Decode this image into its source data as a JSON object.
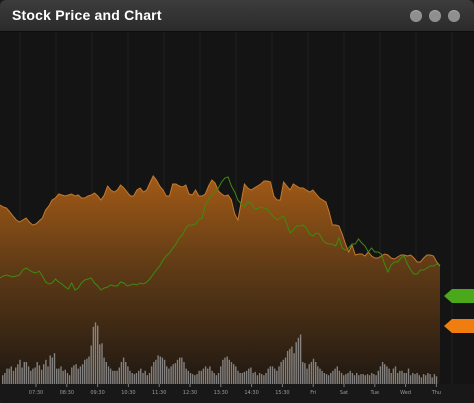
{
  "window": {
    "title": "Stock Price and Chart",
    "controls": [
      "minimize-icon",
      "maximize-icon",
      "close-icon"
    ]
  },
  "colors": {
    "background": "#141414",
    "price_area_top": "#a25a16",
    "price_line": "#c37a2f",
    "comparison_line": "#3c8c10",
    "volume_bars": "#9b9b9b",
    "green_marker": "#4aa81a",
    "orange_marker": "#f07d10"
  },
  "chart_data": {
    "type": "area",
    "x_tick_labels": [
      "07:30",
      "08:30",
      "09:30",
      "10:30",
      "11:30",
      "12:30",
      "13:30",
      "14:30",
      "15:30",
      "Fri",
      "Sat",
      "Tue",
      "Wed",
      "Thu"
    ],
    "series": [
      {
        "values": [
          205,
          207,
          208,
          212,
          216,
          220,
          222,
          220,
          218,
          222,
          225,
          224,
          221,
          218,
          210,
          206,
          200,
          198,
          194,
          195,
          196,
          195,
          194,
          196,
          195,
          198,
          198,
          196,
          195,
          193,
          196,
          200,
          195,
          186,
          190,
          192,
          190,
          185,
          188,
          192,
          196,
          196,
          190,
          188,
          192,
          190,
          183,
          176,
          180,
          186,
          190,
          196,
          196,
          184,
          184,
          186,
          187,
          185,
          194,
          195,
          190,
          196,
          196,
          194,
          186,
          180,
          183,
          191,
          194,
          196,
          195,
          200,
          214,
          220,
          202,
          184,
          188,
          190,
          188,
          186,
          184,
          181,
          181,
          182,
          196,
          200,
          200,
          182,
          186,
          190,
          184,
          186,
          188,
          188,
          190,
          192,
          190,
          194,
          198,
          200,
          202,
          212,
          225,
          225,
          226,
          234,
          244,
          252,
          245,
          255,
          254,
          254,
          256,
          252,
          256,
          258,
          258,
          256,
          254,
          255,
          258,
          259,
          257,
          255,
          255,
          256,
          255,
          258,
          262,
          262,
          258,
          255,
          255,
          256,
          262,
          266
        ]
      },
      {
        "values": [
          278,
          276,
          275,
          276,
          277,
          276,
          275,
          270,
          268,
          270,
          272,
          273,
          271,
          276,
          282,
          284,
          283,
          279,
          282,
          284,
          287,
          289,
          283,
          290,
          288,
          283,
          280,
          279,
          278,
          283,
          286,
          290,
          288,
          287,
          285,
          286,
          286,
          282,
          283,
          286,
          285,
          284,
          285,
          283,
          284,
          282,
          279,
          274,
          270,
          266,
          260,
          256,
          253,
          248,
          244,
          238,
          235,
          228,
          225,
          225,
          224,
          220,
          218,
          205,
          200,
          194,
          193,
          188,
          182,
          178,
          177,
          186,
          192,
          200,
          204,
          207,
          202,
          203,
          208,
          209,
          207,
          208,
          209,
          213,
          217,
          220,
          218,
          216,
          224,
          233,
          230,
          226,
          226,
          225,
          228,
          234,
          236,
          233,
          234,
          240,
          243,
          244,
          244,
          246,
          238,
          248,
          250,
          248,
          244,
          244,
          239,
          243,
          246,
          252,
          248,
          252,
          252,
          254,
          264,
          272,
          265,
          262,
          262,
          258,
          256,
          264,
          270,
          274,
          274,
          270,
          270,
          268,
          266,
          266,
          264,
          265
        ]
      }
    ],
    "volume": [
      8,
      10,
      14,
      14,
      16,
      12,
      15,
      18,
      22,
      15,
      20,
      20,
      16,
      12,
      14,
      15,
      20,
      17,
      13,
      18,
      22,
      16,
      26,
      24,
      28,
      14,
      14,
      16,
      12,
      13,
      10,
      8,
      15,
      17,
      18,
      14,
      16,
      18,
      22,
      23,
      25,
      35,
      52,
      56,
      53,
      36,
      37,
      24,
      20,
      16,
      14,
      12,
      12,
      12,
      15,
      20,
      24,
      20,
      16,
      12,
      10,
      9,
      10,
      12,
      14,
      10,
      12,
      8,
      10,
      16,
      20,
      22,
      26,
      25,
      24,
      22,
      16,
      14,
      16,
      18,
      19,
      22,
      24,
      24,
      20,
      14,
      12,
      10,
      9,
      8,
      9,
      12,
      12,
      14,
      16,
      14,
      16,
      12,
      10,
      8,
      10,
      16,
      22,
      24,
      25,
      22,
      20,
      18,
      16,
      12,
      10,
      10,
      11,
      12,
      14,
      15,
      10,
      11,
      8,
      10,
      9,
      8,
      10,
      14,
      16,
      16,
      14,
      12,
      16,
      20,
      22,
      24,
      30,
      32,
      34,
      28,
      38,
      42,
      45,
      20,
      19,
      14,
      18,
      20,
      23,
      20,
      16,
      14,
      12,
      10,
      9,
      8,
      10,
      12,
      14,
      16,
      12,
      10,
      8,
      9,
      10,
      12,
      10,
      8,
      10,
      8,
      9,
      9,
      8,
      9,
      8,
      10,
      9,
      8,
      12,
      16,
      20,
      18,
      16,
      14,
      10,
      14,
      16,
      10,
      12,
      12,
      10,
      10,
      14,
      8,
      10,
      9,
      10,
      8,
      6,
      9,
      8,
      10,
      9,
      6,
      9,
      7
    ]
  }
}
